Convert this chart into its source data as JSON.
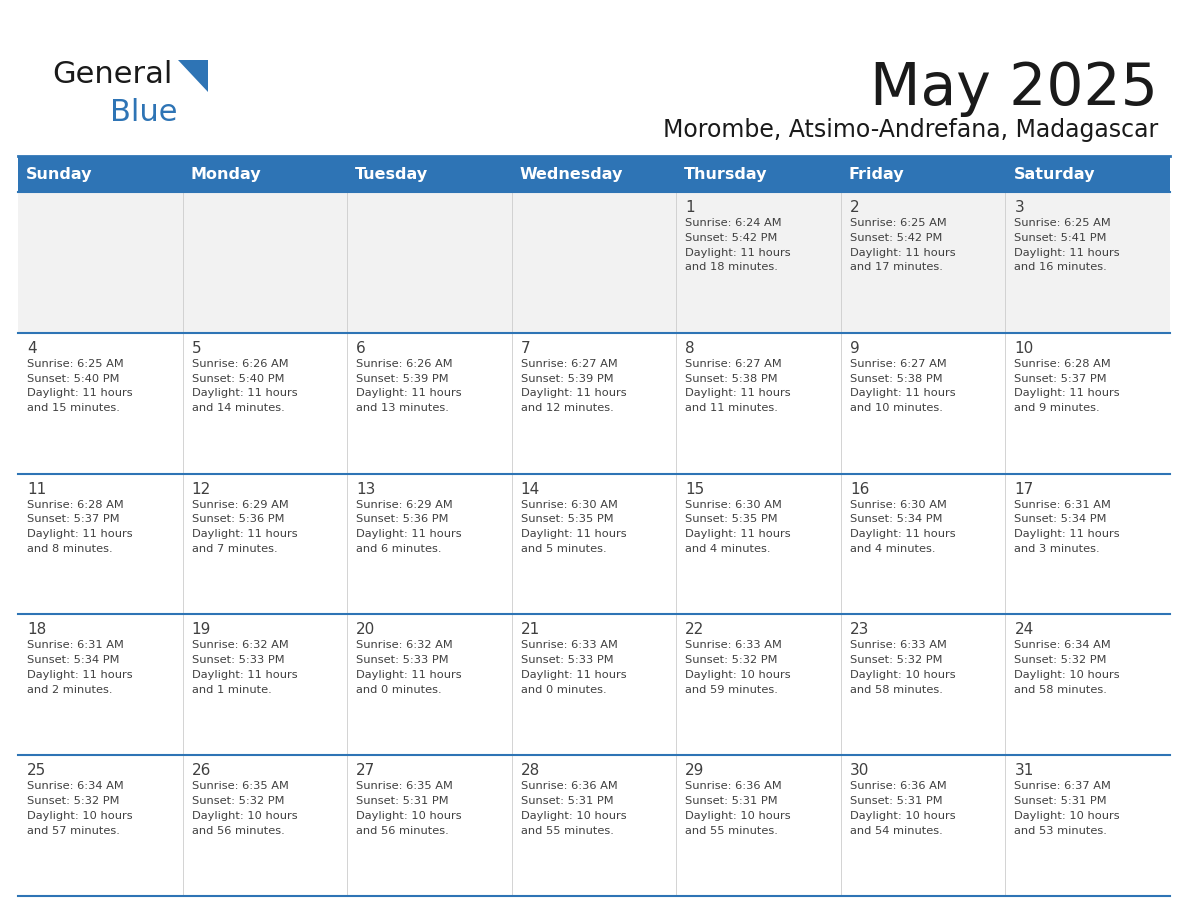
{
  "title": "May 2025",
  "subtitle": "Morombe, Atsimo-Andrefana, Madagascar",
  "days_of_week": [
    "Sunday",
    "Monday",
    "Tuesday",
    "Wednesday",
    "Thursday",
    "Friday",
    "Saturday"
  ],
  "header_bg": "#2E74B5",
  "header_text_color": "#FFFFFF",
  "row_bg_week1": "#F2F2F2",
  "row_bg_other": "#FFFFFF",
  "separator_color": "#2E74B5",
  "cell_border_color": "#AAAAAA",
  "text_color": "#404040",
  "title_color": "#1a1a1a",
  "subtitle_color": "#1a1a1a",
  "logo_general_color": "#1a1a1a",
  "logo_blue_color": "#2E74B5",
  "logo_triangle_color": "#2E74B5",
  "calendar_data": [
    [
      {
        "day": null,
        "info": ""
      },
      {
        "day": null,
        "info": ""
      },
      {
        "day": null,
        "info": ""
      },
      {
        "day": null,
        "info": ""
      },
      {
        "day": 1,
        "info": "Sunrise: 6:24 AM\nSunset: 5:42 PM\nDaylight: 11 hours\nand 18 minutes."
      },
      {
        "day": 2,
        "info": "Sunrise: 6:25 AM\nSunset: 5:42 PM\nDaylight: 11 hours\nand 17 minutes."
      },
      {
        "day": 3,
        "info": "Sunrise: 6:25 AM\nSunset: 5:41 PM\nDaylight: 11 hours\nand 16 minutes."
      }
    ],
    [
      {
        "day": 4,
        "info": "Sunrise: 6:25 AM\nSunset: 5:40 PM\nDaylight: 11 hours\nand 15 minutes."
      },
      {
        "day": 5,
        "info": "Sunrise: 6:26 AM\nSunset: 5:40 PM\nDaylight: 11 hours\nand 14 minutes."
      },
      {
        "day": 6,
        "info": "Sunrise: 6:26 AM\nSunset: 5:39 PM\nDaylight: 11 hours\nand 13 minutes."
      },
      {
        "day": 7,
        "info": "Sunrise: 6:27 AM\nSunset: 5:39 PM\nDaylight: 11 hours\nand 12 minutes."
      },
      {
        "day": 8,
        "info": "Sunrise: 6:27 AM\nSunset: 5:38 PM\nDaylight: 11 hours\nand 11 minutes."
      },
      {
        "day": 9,
        "info": "Sunrise: 6:27 AM\nSunset: 5:38 PM\nDaylight: 11 hours\nand 10 minutes."
      },
      {
        "day": 10,
        "info": "Sunrise: 6:28 AM\nSunset: 5:37 PM\nDaylight: 11 hours\nand 9 minutes."
      }
    ],
    [
      {
        "day": 11,
        "info": "Sunrise: 6:28 AM\nSunset: 5:37 PM\nDaylight: 11 hours\nand 8 minutes."
      },
      {
        "day": 12,
        "info": "Sunrise: 6:29 AM\nSunset: 5:36 PM\nDaylight: 11 hours\nand 7 minutes."
      },
      {
        "day": 13,
        "info": "Sunrise: 6:29 AM\nSunset: 5:36 PM\nDaylight: 11 hours\nand 6 minutes."
      },
      {
        "day": 14,
        "info": "Sunrise: 6:30 AM\nSunset: 5:35 PM\nDaylight: 11 hours\nand 5 minutes."
      },
      {
        "day": 15,
        "info": "Sunrise: 6:30 AM\nSunset: 5:35 PM\nDaylight: 11 hours\nand 4 minutes."
      },
      {
        "day": 16,
        "info": "Sunrise: 6:30 AM\nSunset: 5:34 PM\nDaylight: 11 hours\nand 4 minutes."
      },
      {
        "day": 17,
        "info": "Sunrise: 6:31 AM\nSunset: 5:34 PM\nDaylight: 11 hours\nand 3 minutes."
      }
    ],
    [
      {
        "day": 18,
        "info": "Sunrise: 6:31 AM\nSunset: 5:34 PM\nDaylight: 11 hours\nand 2 minutes."
      },
      {
        "day": 19,
        "info": "Sunrise: 6:32 AM\nSunset: 5:33 PM\nDaylight: 11 hours\nand 1 minute."
      },
      {
        "day": 20,
        "info": "Sunrise: 6:32 AM\nSunset: 5:33 PM\nDaylight: 11 hours\nand 0 minutes."
      },
      {
        "day": 21,
        "info": "Sunrise: 6:33 AM\nSunset: 5:33 PM\nDaylight: 11 hours\nand 0 minutes."
      },
      {
        "day": 22,
        "info": "Sunrise: 6:33 AM\nSunset: 5:32 PM\nDaylight: 10 hours\nand 59 minutes."
      },
      {
        "day": 23,
        "info": "Sunrise: 6:33 AM\nSunset: 5:32 PM\nDaylight: 10 hours\nand 58 minutes."
      },
      {
        "day": 24,
        "info": "Sunrise: 6:34 AM\nSunset: 5:32 PM\nDaylight: 10 hours\nand 58 minutes."
      }
    ],
    [
      {
        "day": 25,
        "info": "Sunrise: 6:34 AM\nSunset: 5:32 PM\nDaylight: 10 hours\nand 57 minutes."
      },
      {
        "day": 26,
        "info": "Sunrise: 6:35 AM\nSunset: 5:32 PM\nDaylight: 10 hours\nand 56 minutes."
      },
      {
        "day": 27,
        "info": "Sunrise: 6:35 AM\nSunset: 5:31 PM\nDaylight: 10 hours\nand 56 minutes."
      },
      {
        "day": 28,
        "info": "Sunrise: 6:36 AM\nSunset: 5:31 PM\nDaylight: 10 hours\nand 55 minutes."
      },
      {
        "day": 29,
        "info": "Sunrise: 6:36 AM\nSunset: 5:31 PM\nDaylight: 10 hours\nand 55 minutes."
      },
      {
        "day": 30,
        "info": "Sunrise: 6:36 AM\nSunset: 5:31 PM\nDaylight: 10 hours\nand 54 minutes."
      },
      {
        "day": 31,
        "info": "Sunrise: 6:37 AM\nSunset: 5:31 PM\nDaylight: 10 hours\nand 53 minutes."
      }
    ]
  ]
}
